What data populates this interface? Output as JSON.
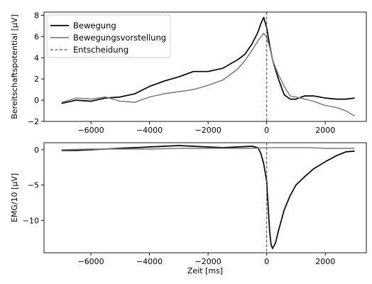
{
  "chart_data": [
    {
      "type": "line",
      "title": "",
      "xlabel": "",
      "ylabel": "Bereitschaftspotential [µV]",
      "xlim": [
        -7600,
        3400
      ],
      "ylim": [
        -2,
        8.3
      ],
      "xticks": [
        -6000,
        -4000,
        -2000,
        0,
        2000
      ],
      "xtick_labels": [
        "−6000",
        "−4000",
        "−2000",
        "0",
        "2000"
      ],
      "yticks": [
        -2,
        0,
        2,
        4,
        6,
        8
      ],
      "ytick_labels": [
        "−2",
        "0",
        "2",
        "4",
        "6",
        "8"
      ],
      "grid": false,
      "legend": {
        "position": "top-left",
        "entries": [
          "Bewegung",
          "Bewegungsvorstellung",
          "Entscheidung"
        ]
      },
      "vline": {
        "x": 0,
        "label": "Entscheidung",
        "color": "#555555",
        "style": "dashed"
      },
      "series": [
        {
          "name": "Bewegung",
          "color": "#000000",
          "x": [
            -7000,
            -6500,
            -6000,
            -5500,
            -5000,
            -4500,
            -4000,
            -3500,
            -3000,
            -2500,
            -2000,
            -1500,
            -1000,
            -750,
            -500,
            -300,
            -200,
            -100,
            0,
            100,
            200,
            400,
            600,
            800,
            1000,
            1300,
            1600,
            2000,
            2400,
            2700,
            3000
          ],
          "y": [
            -0.3,
            0.0,
            -0.1,
            0.2,
            0.3,
            0.6,
            1.3,
            1.8,
            2.2,
            2.7,
            2.7,
            3.0,
            3.8,
            4.3,
            5.3,
            6.4,
            7.2,
            7.8,
            6.8,
            5.2,
            3.8,
            2.0,
            0.5,
            0.1,
            0.1,
            0.4,
            0.4,
            0.2,
            0.1,
            0.1,
            0.2
          ]
        },
        {
          "name": "Bewegungsvorstellung",
          "color": "#808080",
          "x": [
            -7000,
            -6500,
            -6000,
            -5500,
            -5000,
            -4500,
            -4000,
            -3500,
            -3000,
            -2500,
            -2000,
            -1500,
            -1000,
            -750,
            -500,
            -300,
            -100,
            0,
            100,
            200,
            400,
            600,
            800,
            1000,
            1300,
            1600,
            2000,
            2400,
            2700,
            3000
          ],
          "y": [
            -0.2,
            0.2,
            0.1,
            0.3,
            -0.1,
            -0.2,
            0.3,
            0.6,
            0.8,
            1.0,
            1.4,
            1.9,
            2.9,
            3.7,
            4.7,
            5.6,
            6.3,
            5.9,
            5.0,
            3.8,
            2.4,
            1.3,
            0.4,
            0.3,
            0.1,
            -0.1,
            -0.5,
            -0.7,
            -1.0,
            -1.5
          ]
        }
      ]
    },
    {
      "type": "line",
      "title": "",
      "xlabel": "Zeit [ms]",
      "ylabel": "EMG/10 [µV]",
      "xlim": [
        -7600,
        3400
      ],
      "ylim": [
        -14.6,
        1.0
      ],
      "xticks": [
        -6000,
        -4000,
        -2000,
        0,
        2000
      ],
      "xtick_labels": [
        "−6000",
        "−4000",
        "−2000",
        "0",
        "2000"
      ],
      "yticks": [
        -10,
        -5,
        0
      ],
      "ytick_labels": [
        "−10",
        "−5",
        "0"
      ],
      "grid": false,
      "vline": {
        "x": 0,
        "color": "#555555",
        "style": "dashed"
      },
      "series": [
        {
          "name": "Bewegung",
          "color": "#000000",
          "x": [
            -7000,
            -6500,
            -6000,
            -5500,
            -5000,
            -4500,
            -4000,
            -3500,
            -3000,
            -2500,
            -2000,
            -1500,
            -1000,
            -500,
            -300,
            -200,
            -100,
            0,
            50,
            100,
            150,
            200,
            300,
            400,
            500,
            600,
            800,
            1000,
            1300,
            1600,
            2000,
            2400,
            2700,
            3000
          ],
          "y": [
            -0.1,
            -0.1,
            0.0,
            0.1,
            0.2,
            0.3,
            0.4,
            0.5,
            0.6,
            0.5,
            0.4,
            0.3,
            0.4,
            0.5,
            0.3,
            -0.5,
            -2.0,
            -4.5,
            -8.0,
            -11.5,
            -13.5,
            -14.0,
            -13.2,
            -11.5,
            -10.0,
            -8.5,
            -6.5,
            -5.0,
            -3.8,
            -2.7,
            -1.7,
            -0.8,
            -0.3,
            -0.2
          ]
        },
        {
          "name": "Bewegungsvorstellung",
          "color": "#808080",
          "x": [
            -7000,
            -6000,
            -5000,
            -4000,
            -3000,
            -2000,
            -1000,
            -500,
            0,
            500,
            1000,
            1500,
            2000,
            2500,
            3000
          ],
          "y": [
            0.0,
            0.1,
            0.1,
            0.1,
            0.2,
            0.2,
            0.2,
            0.2,
            0.3,
            0.3,
            0.3,
            0.3,
            0.2,
            0.2,
            0.2
          ]
        }
      ]
    }
  ]
}
